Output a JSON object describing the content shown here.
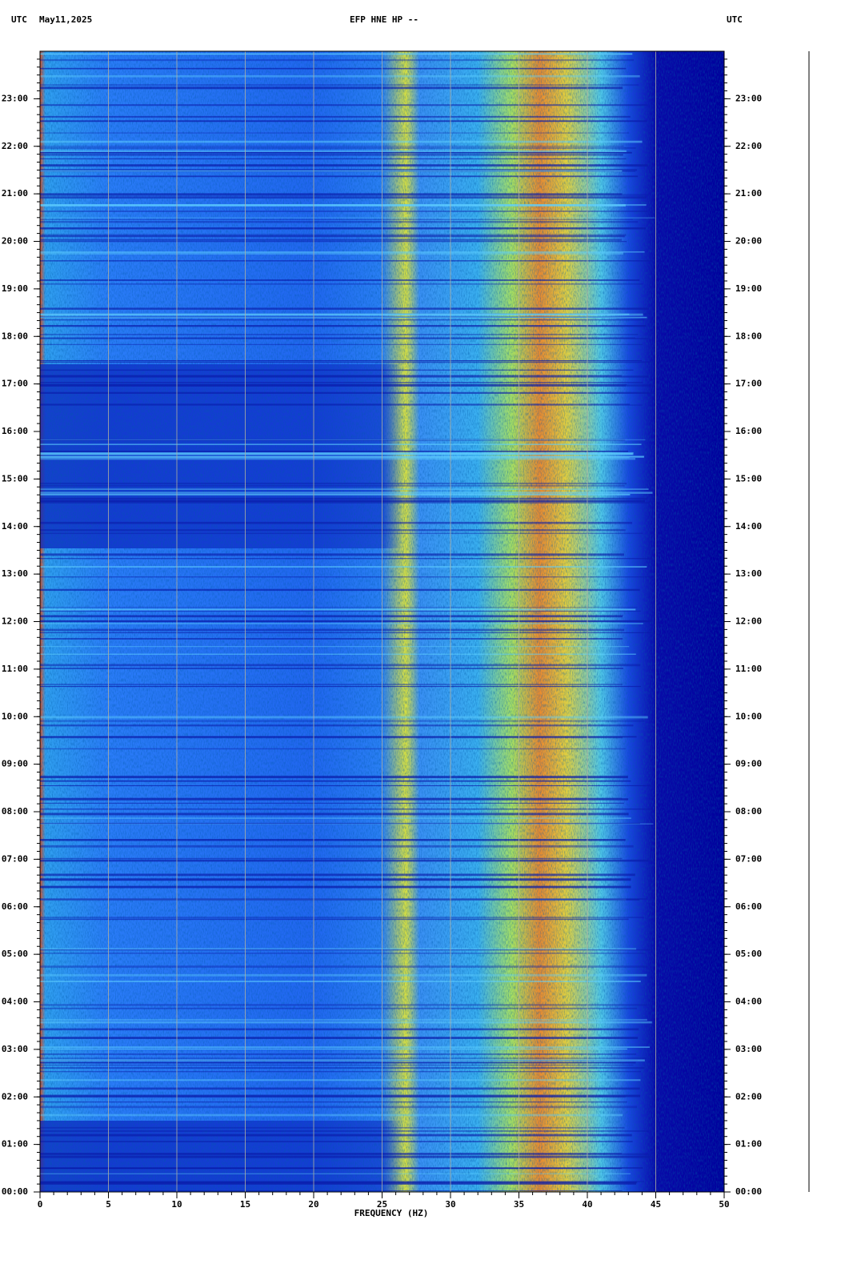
{
  "chart_data": {
    "type": "spectrogram",
    "title": "EFP HNE HP --",
    "left_label": "UTC",
    "date": "May11,2025",
    "right_label": "UTC",
    "x_label": "FREQUENCY (HZ)",
    "xlim": [
      0,
      50
    ],
    "xticks": [
      0,
      5,
      10,
      15,
      20,
      25,
      30,
      35,
      40,
      45,
      50
    ],
    "ylim": [
      0,
      24
    ],
    "yticks": [
      {
        "value": 0,
        "label": "00:00"
      },
      {
        "value": 1,
        "label": "01:00"
      },
      {
        "value": 2,
        "label": "02:00"
      },
      {
        "value": 3,
        "label": "03:00"
      },
      {
        "value": 4,
        "label": "04:00"
      },
      {
        "value": 5,
        "label": "05:00"
      },
      {
        "value": 6,
        "label": "06:00"
      },
      {
        "value": 7,
        "label": "07:00"
      },
      {
        "value": 8,
        "label": "08:00"
      },
      {
        "value": 9,
        "label": "09:00"
      },
      {
        "value": 10,
        "label": "10:00"
      },
      {
        "value": 11,
        "label": "11:00"
      },
      {
        "value": 12,
        "label": "12:00"
      },
      {
        "value": 13,
        "label": "13:00"
      },
      {
        "value": 14,
        "label": "14:00"
      },
      {
        "value": 15,
        "label": "15:00"
      },
      {
        "value": 16,
        "label": "16:00"
      },
      {
        "value": 17,
        "label": "17:00"
      },
      {
        "value": 18,
        "label": "18:00"
      },
      {
        "value": 19,
        "label": "19:00"
      },
      {
        "value": 20,
        "label": "20:00"
      },
      {
        "value": 21,
        "label": "21:00"
      },
      {
        "value": 22,
        "label": "22:00"
      },
      {
        "value": 23,
        "label": "23:00"
      }
    ],
    "grid": true
  }
}
